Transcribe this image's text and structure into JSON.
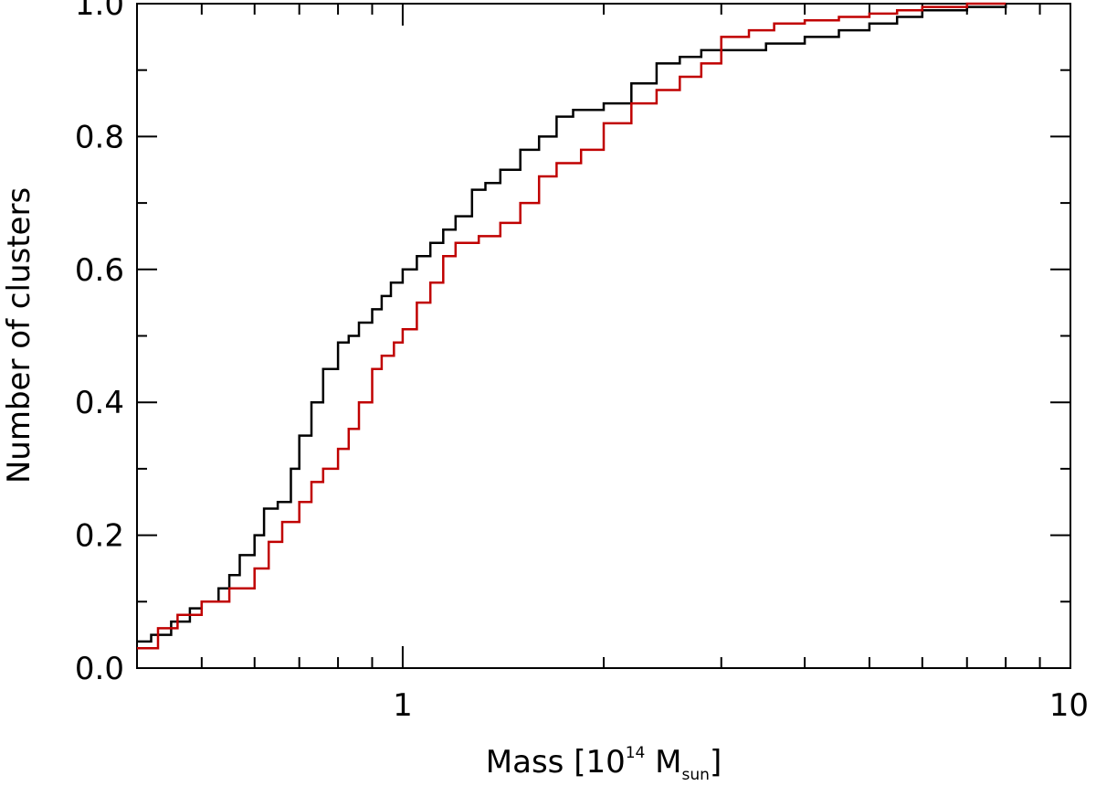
{
  "chart_data": {
    "type": "line",
    "title": "",
    "xlabel": {
      "base": "Mass [10",
      "sup": "14",
      "mid": " M",
      "sub": "sun",
      "end": "]"
    },
    "ylabel": "Number of clusters",
    "xscale": "log",
    "xlim": [
      0.4,
      10
    ],
    "ylim": [
      0.0,
      1.0
    ],
    "x_ticks": [
      {
        "value": 1,
        "label": "1"
      },
      {
        "value": 10,
        "label": "10"
      }
    ],
    "y_ticks": [
      {
        "value": 0.0,
        "label": "0.0"
      },
      {
        "value": 0.2,
        "label": "0.2"
      },
      {
        "value": 0.4,
        "label": "0.4"
      },
      {
        "value": 0.6,
        "label": "0.6"
      },
      {
        "value": 0.8,
        "label": "0.8"
      },
      {
        "value": 1.0,
        "label": "1.0"
      }
    ],
    "grid": false,
    "legend": "none",
    "series": [
      {
        "color": "#000000",
        "step": true,
        "x": [
          0.4,
          0.42,
          0.45,
          0.48,
          0.5,
          0.53,
          0.55,
          0.57,
          0.6,
          0.62,
          0.65,
          0.68,
          0.7,
          0.73,
          0.76,
          0.8,
          0.83,
          0.86,
          0.9,
          0.93,
          0.96,
          1.0,
          1.05,
          1.1,
          1.15,
          1.2,
          1.27,
          1.33,
          1.4,
          1.5,
          1.6,
          1.7,
          1.8,
          2.0,
          2.2,
          2.4,
          2.6,
          2.8,
          3.0,
          3.5,
          4.0,
          4.5,
          5.0,
          5.5,
          6.0,
          7.0,
          8.0
        ],
        "y": [
          0.04,
          0.05,
          0.07,
          0.09,
          0.1,
          0.12,
          0.14,
          0.17,
          0.2,
          0.24,
          0.25,
          0.3,
          0.35,
          0.4,
          0.45,
          0.49,
          0.5,
          0.52,
          0.54,
          0.56,
          0.58,
          0.6,
          0.62,
          0.64,
          0.66,
          0.68,
          0.72,
          0.73,
          0.75,
          0.78,
          0.8,
          0.83,
          0.84,
          0.85,
          0.88,
          0.91,
          0.92,
          0.93,
          0.93,
          0.94,
          0.95,
          0.96,
          0.97,
          0.98,
          0.99,
          0.995,
          1.0
        ]
      },
      {
        "color": "#c00000",
        "step": true,
        "x": [
          0.4,
          0.43,
          0.46,
          0.5,
          0.55,
          0.6,
          0.63,
          0.66,
          0.7,
          0.73,
          0.76,
          0.8,
          0.83,
          0.86,
          0.9,
          0.93,
          0.97,
          1.0,
          1.05,
          1.1,
          1.15,
          1.2,
          1.3,
          1.4,
          1.5,
          1.6,
          1.7,
          1.85,
          2.0,
          2.2,
          2.4,
          2.6,
          2.8,
          3.0,
          3.3,
          3.6,
          4.0,
          4.5,
          5.0,
          5.5,
          6.0,
          7.0,
          8.0
        ],
        "y": [
          0.03,
          0.06,
          0.08,
          0.1,
          0.12,
          0.15,
          0.19,
          0.22,
          0.25,
          0.28,
          0.3,
          0.33,
          0.36,
          0.4,
          0.45,
          0.47,
          0.49,
          0.51,
          0.55,
          0.58,
          0.62,
          0.64,
          0.65,
          0.67,
          0.7,
          0.74,
          0.76,
          0.78,
          0.82,
          0.85,
          0.87,
          0.89,
          0.91,
          0.95,
          0.96,
          0.97,
          0.975,
          0.98,
          0.985,
          0.99,
          0.995,
          1.0,
          1.0
        ]
      }
    ]
  }
}
